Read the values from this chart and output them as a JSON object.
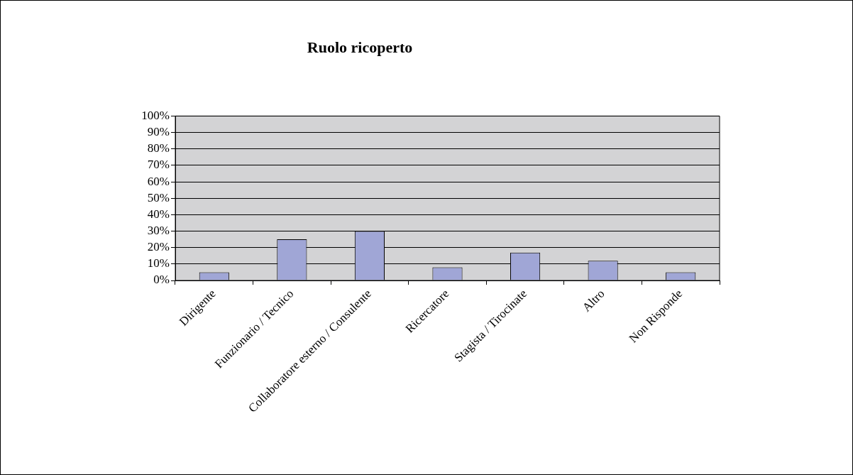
{
  "chart_data": {
    "type": "bar",
    "title": "Ruolo ricoperto",
    "categories": [
      "Dirigente",
      "Funzionario / Tecnico",
      "Collaboratore esterno / Consulente",
      "Ricercatore",
      "Stagista / Tirocinate",
      "Altro",
      "Non Risponde"
    ],
    "values": [
      5,
      25,
      30,
      8,
      17,
      12,
      5
    ],
    "color": "#a0a6d6",
    "ylim": [
      0,
      100
    ],
    "yticks": [
      {
        "value": 0,
        "label": "0%"
      },
      {
        "value": 10,
        "label": "10%"
      },
      {
        "value": 20,
        "label": "20%"
      },
      {
        "value": 30,
        "label": "30%"
      },
      {
        "value": 40,
        "label": "40%"
      },
      {
        "value": 50,
        "label": "50%"
      },
      {
        "value": 60,
        "label": "60%"
      },
      {
        "value": 70,
        "label": "70%"
      },
      {
        "value": 80,
        "label": "80%"
      },
      {
        "value": 90,
        "label": "90%"
      },
      {
        "value": 100,
        "label": "100%"
      }
    ],
    "grid": "y",
    "legend": false
  }
}
